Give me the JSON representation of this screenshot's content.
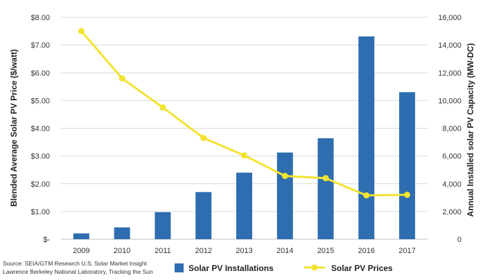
{
  "chart_data": {
    "type": "bar",
    "categories": [
      "2009",
      "2010",
      "2011",
      "2012",
      "2013",
      "2014",
      "2015",
      "2016",
      "2017"
    ],
    "series": [
      {
        "name": "Solar PV Installations",
        "type": "bar",
        "axis": "right",
        "color": "#2e6db0",
        "values": [
          420,
          850,
          1950,
          3400,
          4800,
          6250,
          7280,
          14620,
          10600
        ]
      },
      {
        "name": "Solar PV Prices",
        "type": "line",
        "axis": "left",
        "color": "#f2e331",
        "values": [
          7.5,
          5.8,
          4.75,
          3.65,
          3.02,
          2.28,
          2.2,
          1.58,
          1.6
        ]
      }
    ],
    "ylabel": "Blended Average Solar PV Price ($/watt)",
    "y2label": "Annual Installed solar PV Capacity (MW-DC)",
    "ylim": [
      0,
      8
    ],
    "y2lim": [
      0,
      16000
    ],
    "left_ticks": [
      "$-",
      "$1.00",
      "$2.00",
      "$3.00",
      "$4.00",
      "$5.00",
      "$6.00",
      "$7.00",
      "$8.00"
    ],
    "right_ticks": [
      "0",
      "2,000",
      "4,000",
      "6,000",
      "8,000",
      "10,000",
      "12,000",
      "14,000",
      "16,000"
    ],
    "grid": true,
    "legend_position": "bottom"
  },
  "source": {
    "line1": "Source: SEIA/GTM Research U.S. Solar Market Insight",
    "line2": "Lawrence Berkeley National Laboratory, Tracking the Sun"
  }
}
